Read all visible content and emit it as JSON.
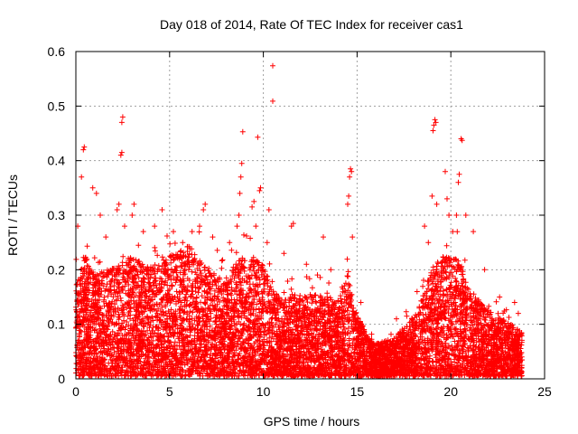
{
  "chart_data": {
    "type": "scatter",
    "title": "Day 018 of 2014, Rate Of TEC Index for receiver cas1",
    "xlabel": "GPS time / hours",
    "ylabel": "ROTI / TECUs",
    "xlim": [
      0,
      25
    ],
    "ylim": [
      0,
      0.6
    ],
    "xticks": [
      0,
      5,
      10,
      15,
      20,
      25
    ],
    "yticks": [
      0,
      0.1,
      0.2,
      0.3,
      0.4,
      0.5,
      0.6
    ],
    "xtick_labels": [
      "0",
      "5",
      "10",
      "15",
      "20",
      "25"
    ],
    "ytick_labels": [
      "0",
      "0.1",
      "0.2",
      "0.3",
      "0.4",
      "0.5",
      "0.6"
    ],
    "grid": true,
    "marker": "+",
    "color": "#ff0000",
    "envelope": {
      "description": "typical upper extent of the dense cloud of ROTI points vs time (hours, TECU)",
      "x": [
        0,
        0.5,
        1,
        2,
        3,
        4,
        5,
        6,
        7,
        8,
        8.5,
        9,
        10,
        10.5,
        11,
        12,
        13,
        14,
        14.5,
        15,
        15.5,
        16,
        17,
        17.5,
        18,
        18.5,
        19,
        19.5,
        20,
        20.5,
        21,
        21.5,
        22,
        23,
        23.8
      ],
      "y": [
        0.17,
        0.22,
        0.19,
        0.2,
        0.22,
        0.2,
        0.22,
        0.24,
        0.2,
        0.17,
        0.21,
        0.22,
        0.21,
        0.16,
        0.14,
        0.15,
        0.15,
        0.14,
        0.2,
        0.11,
        0.08,
        0.06,
        0.07,
        0.09,
        0.11,
        0.15,
        0.2,
        0.22,
        0.22,
        0.21,
        0.16,
        0.14,
        0.12,
        0.1,
        0.08
      ]
    },
    "outliers": [
      {
        "x": 0.1,
        "y": 0.28
      },
      {
        "x": 0.3,
        "y": 0.37
      },
      {
        "x": 0.4,
        "y": 0.42
      },
      {
        "x": 0.45,
        "y": 0.425
      },
      {
        "x": 0.9,
        "y": 0.35
      },
      {
        "x": 1.1,
        "y": 0.34
      },
      {
        "x": 1.3,
        "y": 0.3
      },
      {
        "x": 1.6,
        "y": 0.26
      },
      {
        "x": 2.2,
        "y": 0.31
      },
      {
        "x": 2.3,
        "y": 0.32
      },
      {
        "x": 2.4,
        "y": 0.41
      },
      {
        "x": 2.45,
        "y": 0.415
      },
      {
        "x": 2.45,
        "y": 0.47
      },
      {
        "x": 2.5,
        "y": 0.48
      },
      {
        "x": 2.6,
        "y": 0.28
      },
      {
        "x": 3.0,
        "y": 0.3
      },
      {
        "x": 3.1,
        "y": 0.32
      },
      {
        "x": 3.6,
        "y": 0.27
      },
      {
        "x": 4.2,
        "y": 0.28
      },
      {
        "x": 4.6,
        "y": 0.31
      },
      {
        "x": 5.2,
        "y": 0.27
      },
      {
        "x": 5.7,
        "y": 0.25
      },
      {
        "x": 6.2,
        "y": 0.27
      },
      {
        "x": 6.6,
        "y": 0.28
      },
      {
        "x": 6.8,
        "y": 0.31
      },
      {
        "x": 6.9,
        "y": 0.32
      },
      {
        "x": 7.3,
        "y": 0.26
      },
      {
        "x": 8.2,
        "y": 0.25
      },
      {
        "x": 8.6,
        "y": 0.28
      },
      {
        "x": 8.7,
        "y": 0.3
      },
      {
        "x": 8.75,
        "y": 0.34
      },
      {
        "x": 8.8,
        "y": 0.37
      },
      {
        "x": 8.85,
        "y": 0.395
      },
      {
        "x": 8.9,
        "y": 0.453
      },
      {
        "x": 9.4,
        "y": 0.315
      },
      {
        "x": 9.5,
        "y": 0.325
      },
      {
        "x": 9.6,
        "y": 0.28
      },
      {
        "x": 9.7,
        "y": 0.443
      },
      {
        "x": 9.8,
        "y": 0.345
      },
      {
        "x": 9.85,
        "y": 0.35
      },
      {
        "x": 10.2,
        "y": 0.25
      },
      {
        "x": 10.3,
        "y": 0.31
      },
      {
        "x": 10.5,
        "y": 0.509
      },
      {
        "x": 10.5,
        "y": 0.574
      },
      {
        "x": 11.1,
        "y": 0.23
      },
      {
        "x": 11.5,
        "y": 0.28
      },
      {
        "x": 11.6,
        "y": 0.285
      },
      {
        "x": 12.3,
        "y": 0.21
      },
      {
        "x": 13.2,
        "y": 0.26
      },
      {
        "x": 13.6,
        "y": 0.2
      },
      {
        "x": 14.5,
        "y": 0.32
      },
      {
        "x": 14.55,
        "y": 0.335
      },
      {
        "x": 14.6,
        "y": 0.37
      },
      {
        "x": 14.65,
        "y": 0.385
      },
      {
        "x": 14.7,
        "y": 0.38
      },
      {
        "x": 14.75,
        "y": 0.26
      },
      {
        "x": 15.2,
        "y": 0.14
      },
      {
        "x": 17.1,
        "y": 0.11
      },
      {
        "x": 18.2,
        "y": 0.16
      },
      {
        "x": 18.6,
        "y": 0.28
      },
      {
        "x": 18.8,
        "y": 0.25
      },
      {
        "x": 19.0,
        "y": 0.335
      },
      {
        "x": 19.05,
        "y": 0.455
      },
      {
        "x": 19.1,
        "y": 0.465
      },
      {
        "x": 19.15,
        "y": 0.475
      },
      {
        "x": 19.2,
        "y": 0.47
      },
      {
        "x": 19.25,
        "y": 0.32
      },
      {
        "x": 19.7,
        "y": 0.38
      },
      {
        "x": 19.8,
        "y": 0.33
      },
      {
        "x": 19.9,
        "y": 0.3
      },
      {
        "x": 20.1,
        "y": 0.27
      },
      {
        "x": 20.3,
        "y": 0.3
      },
      {
        "x": 20.4,
        "y": 0.36
      },
      {
        "x": 20.45,
        "y": 0.375
      },
      {
        "x": 20.55,
        "y": 0.44
      },
      {
        "x": 20.6,
        "y": 0.437
      },
      {
        "x": 20.8,
        "y": 0.3
      },
      {
        "x": 21.2,
        "y": 0.27
      },
      {
        "x": 21.8,
        "y": 0.2
      },
      {
        "x": 22.6,
        "y": 0.15
      },
      {
        "x": 23.4,
        "y": 0.14
      },
      {
        "x": 23.6,
        "y": 0.12
      }
    ],
    "total_points_approx": 9000
  }
}
